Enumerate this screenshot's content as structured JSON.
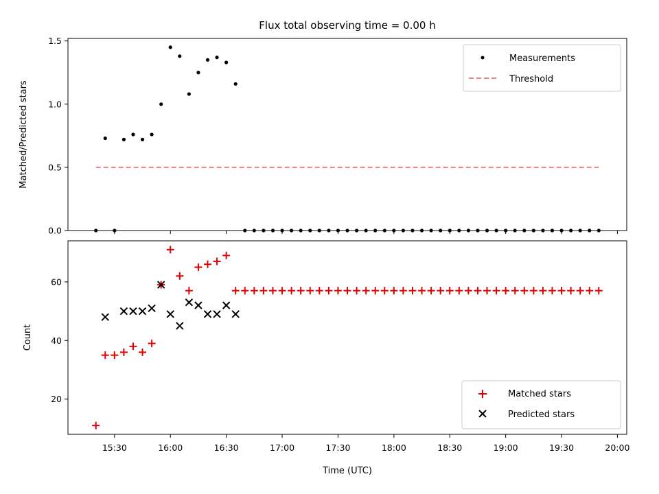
{
  "title": "Flux total observing time = 0.00 h",
  "chart_data": [
    {
      "type": "scatter",
      "ylabel": "Matched/Predicted stars",
      "xlabel": "",
      "xlim": [
        "15:05",
        "20:05"
      ],
      "ylim": [
        0,
        1.52
      ],
      "yticks": [
        0.0,
        0.5,
        1.0,
        1.5
      ],
      "ytick_labels": [
        "0.0",
        "0.5",
        "1.0",
        "1.5"
      ],
      "grid": false,
      "legend": "top-right",
      "threshold": {
        "name": "Threshold",
        "y": 0.5,
        "x_start": "15:20",
        "x_end": "19:50",
        "color": "#f08080",
        "style": "dashed"
      },
      "series": [
        {
          "name": "Measurements",
          "marker": "dot",
          "color": "#000000",
          "x": [
            "15:20",
            "15:25",
            "15:30",
            "15:35",
            "15:40",
            "15:45",
            "15:50",
            "15:55",
            "16:00",
            "16:05",
            "16:10",
            "16:15",
            "16:20",
            "16:25",
            "16:30",
            "16:35",
            "16:40",
            "16:45",
            "16:50",
            "16:55",
            "17:00",
            "17:05",
            "17:10",
            "17:15",
            "17:20",
            "17:25",
            "17:30",
            "17:35",
            "17:40",
            "17:45",
            "17:50",
            "17:55",
            "18:00",
            "18:05",
            "18:10",
            "18:15",
            "18:20",
            "18:25",
            "18:30",
            "18:35",
            "18:40",
            "18:45",
            "18:50",
            "18:55",
            "19:00",
            "19:05",
            "19:10",
            "19:15",
            "19:20",
            "19:25",
            "19:30",
            "19:35",
            "19:40",
            "19:45",
            "19:50"
          ],
          "y": [
            0.0,
            0.73,
            0.0,
            0.72,
            0.76,
            0.72,
            0.76,
            1.0,
            1.45,
            1.38,
            1.08,
            1.25,
            1.35,
            1.37,
            1.33,
            1.16,
            0,
            0,
            0,
            0,
            0,
            0,
            0,
            0,
            0,
            0,
            0,
            0,
            0,
            0,
            0,
            0,
            0,
            0,
            0,
            0,
            0,
            0,
            0,
            0,
            0,
            0,
            0,
            0,
            0,
            0,
            0,
            0,
            0,
            0,
            0,
            0,
            0,
            0,
            0
          ]
        }
      ]
    },
    {
      "type": "scatter",
      "ylabel": "Count",
      "xlabel": "Time (UTC)",
      "xlim": [
        "15:05",
        "20:05"
      ],
      "ylim": [
        8,
        74
      ],
      "yticks": [
        20,
        40,
        60
      ],
      "ytick_labels": [
        "20",
        "40",
        "60"
      ],
      "xticks": [
        "15:30",
        "16:00",
        "16:30",
        "17:00",
        "17:30",
        "18:00",
        "18:30",
        "19:00",
        "19:30",
        "20:00"
      ],
      "grid": false,
      "legend": "bottom-right",
      "series": [
        {
          "name": "Matched stars",
          "marker": "plus",
          "color": "#e00000",
          "x": [
            "15:20",
            "15:25",
            "15:30",
            "15:35",
            "15:40",
            "15:45",
            "15:50",
            "15:55",
            "16:00",
            "16:05",
            "16:10",
            "16:15",
            "16:20",
            "16:25",
            "16:30",
            "16:35",
            "16:40",
            "16:45",
            "16:50",
            "16:55",
            "17:00",
            "17:05",
            "17:10",
            "17:15",
            "17:20",
            "17:25",
            "17:30",
            "17:35",
            "17:40",
            "17:45",
            "17:50",
            "17:55",
            "18:00",
            "18:05",
            "18:10",
            "18:15",
            "18:20",
            "18:25",
            "18:30",
            "18:35",
            "18:40",
            "18:45",
            "18:50",
            "18:55",
            "19:00",
            "19:05",
            "19:10",
            "19:15",
            "19:20",
            "19:25",
            "19:30",
            "19:35",
            "19:40",
            "19:45",
            "19:50"
          ],
          "y": [
            11,
            35,
            35,
            36,
            38,
            36,
            39,
            59,
            71,
            62,
            57,
            65,
            66,
            67,
            69,
            57,
            57,
            57,
            57,
            57,
            57,
            57,
            57,
            57,
            57,
            57,
            57,
            57,
            57,
            57,
            57,
            57,
            57,
            57,
            57,
            57,
            57,
            57,
            57,
            57,
            57,
            57,
            57,
            57,
            57,
            57,
            57,
            57,
            57,
            57,
            57,
            57,
            57,
            57,
            57
          ]
        },
        {
          "name": "Predicted stars",
          "marker": "x",
          "color": "#000000",
          "x": [
            "15:25",
            "15:35",
            "15:40",
            "15:45",
            "15:50",
            "15:55",
            "16:00",
            "16:05",
            "16:10",
            "16:15",
            "16:20",
            "16:25",
            "16:30",
            "16:35"
          ],
          "y": [
            48,
            50,
            50,
            50,
            51,
            59,
            49,
            45,
            53,
            52,
            49,
            49,
            52,
            49
          ]
        }
      ]
    }
  ]
}
